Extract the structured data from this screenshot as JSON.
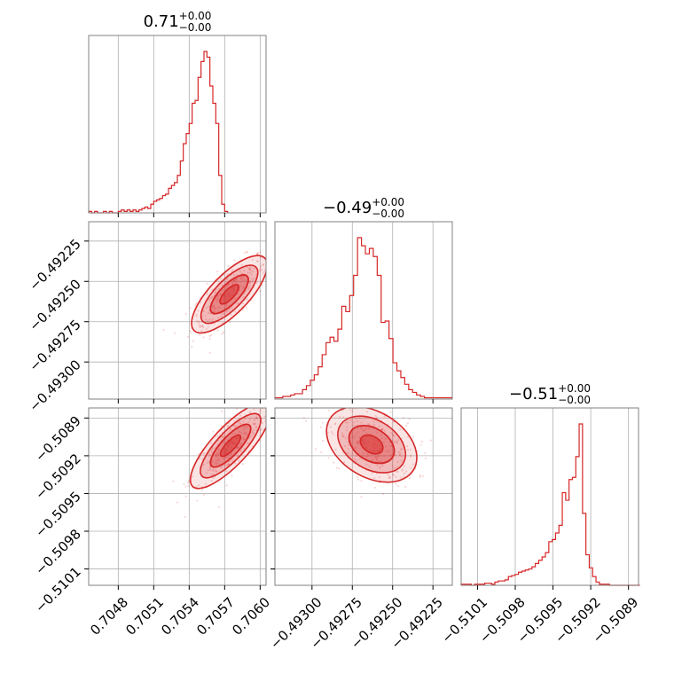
{
  "colors": {
    "main": "#d62728",
    "grid": "#b0b0b0",
    "frame": "#808080"
  },
  "chart_data": {
    "type": "corner",
    "parameters": [
      {
        "title": {
          "value": "0.71",
          "upper": "+0.00",
          "lower": "−0.00"
        },
        "range": [
          0.70455,
          0.70605
        ],
        "ticks": [
          0.7048,
          0.7051,
          0.7054,
          0.7057,
          0.706
        ],
        "tick_labels": [
          "0.7048",
          "0.7051",
          "0.7054",
          "0.7057",
          "0.7060"
        ],
        "hist": {
          "start": 0.70455,
          "step": 2.5e-05,
          "counts": [
            1,
            0,
            1,
            0,
            0,
            1,
            0,
            1,
            0,
            0,
            1,
            2,
            1,
            2,
            1,
            2,
            1,
            2,
            3,
            4,
            3,
            6,
            8,
            9,
            10,
            12,
            13,
            17,
            19,
            21,
            26,
            36,
            48,
            55,
            62,
            76,
            78,
            94,
            105,
            112,
            108,
            88,
            76,
            62,
            26,
            6,
            1
          ]
        }
      },
      {
        "title": {
          "value": "−0.49",
          "upper": "+0.00",
          "lower": "−0.00"
        },
        "range": [
          -0.49323,
          -0.49213
        ],
        "ticks": [
          -0.493,
          -0.49275,
          -0.4925,
          -0.49225
        ],
        "tick_labels": [
          "−0.49300",
          "−0.49275",
          "−0.49250",
          "−0.49225"
        ],
        "hist": {
          "start": -0.49323,
          "step": 2.44e-05,
          "counts": [
            1,
            1,
            2,
            2,
            3,
            4,
            4,
            7,
            10,
            14,
            18,
            24,
            33,
            42,
            46,
            43,
            52,
            69,
            65,
            77,
            92,
            120,
            114,
            108,
            112,
            106,
            92,
            57,
            58,
            45,
            27,
            21,
            16,
            11,
            7,
            5,
            3,
            2,
            1,
            1,
            1,
            1,
            1,
            1,
            1
          ]
        }
      },
      {
        "title": {
          "value": "−0.51",
          "upper": "+0.00",
          "lower": "−0.00"
        },
        "range": [
          -0.51023,
          -0.50882
        ],
        "ticks": [
          -0.5101,
          -0.5098,
          -0.5095,
          -0.5092,
          -0.5089
        ],
        "tick_labels": [
          "−0.5101",
          "−0.5098",
          "−0.5095",
          "−0.5092",
          "−0.5089"
        ],
        "hist": {
          "start": -0.51023,
          "step": 2.68e-05,
          "counts": [
            1,
            1,
            1,
            0,
            1,
            1,
            1,
            2,
            2,
            1,
            3,
            4,
            4,
            5,
            8,
            9,
            10,
            12,
            13,
            14,
            15,
            17,
            20,
            23,
            26,
            30,
            40,
            42,
            48,
            55,
            85,
            78,
            97,
            99,
            118,
            148,
            66,
            28,
            16,
            8,
            3,
            1,
            1,
            1,
            0,
            0,
            0,
            0,
            0,
            0,
            0,
            0,
            0
          ]
        }
      }
    ],
    "pairs": [
      {
        "x": 0,
        "y": 1,
        "center": [
          0.70574,
          -0.49258
        ],
        "spread": [
          0.00016,
          0.00012
        ],
        "correlation": 0.75,
        "n_points": 340
      },
      {
        "x": 0,
        "y": 2,
        "center": [
          0.70575,
          -0.50912
        ],
        "spread": [
          0.00017,
          0.00017
        ],
        "correlation": 0.8,
        "n_points": 340
      },
      {
        "x": 1,
        "y": 2,
        "center": [
          -0.49263,
          -0.50911
        ],
        "spread": [
          0.00014,
          0.00015
        ],
        "correlation": -0.35,
        "n_points": 340
      }
    ]
  }
}
